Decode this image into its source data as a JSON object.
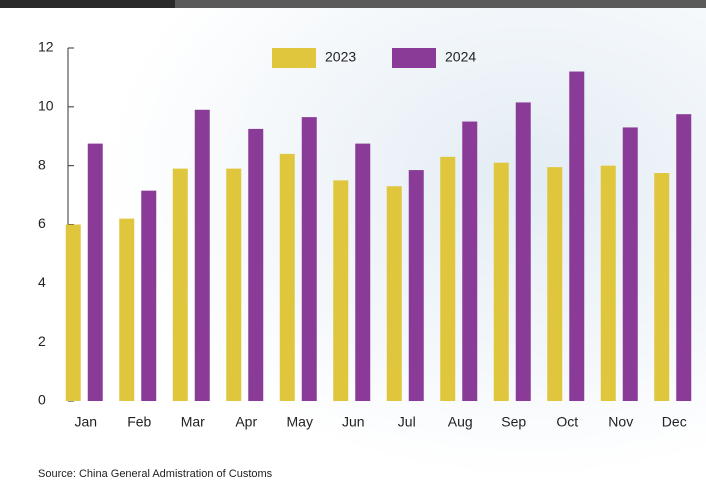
{
  "chart_data": {
    "type": "bar",
    "categories": [
      "Jan",
      "Feb",
      "Mar",
      "Apr",
      "May",
      "Jun",
      "Jul",
      "Aug",
      "Sep",
      "Oct",
      "Nov",
      "Dec"
    ],
    "series": [
      {
        "name": "2023",
        "color": "#e0c63c",
        "values": [
          6.0,
          6.2,
          7.9,
          7.9,
          8.4,
          7.5,
          7.3,
          8.3,
          8.1,
          7.95,
          8.0,
          7.75
        ]
      },
      {
        "name": "2024",
        "color": "#8a3b98",
        "values": [
          8.75,
          7.15,
          9.9,
          9.25,
          9.65,
          8.75,
          7.85,
          9.5,
          10.15,
          11.2,
          9.3,
          9.75
        ]
      }
    ],
    "ylim": [
      0,
      12
    ],
    "yticks": [
      0,
      2,
      4,
      6,
      8,
      10,
      12
    ],
    "source": "Source: China General Admistration of Customs"
  }
}
